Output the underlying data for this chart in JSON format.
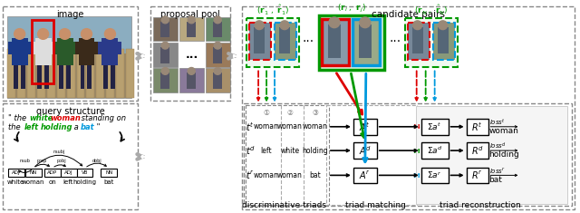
{
  "title_image": "image",
  "title_proposal": "proposal pool",
  "title_candidate": "candidate pairs",
  "title_query": "query structure",
  "title_disc": "discriminative triads",
  "title_triad_match": "triad matching",
  "title_triad_recon": "triad reconstruction",
  "bg_color": "#ffffff",
  "red": "#dd0000",
  "green": "#009900",
  "blue": "#0099dd",
  "cyan": "#00bbcc",
  "figsize": [
    6.4,
    2.35
  ],
  "dpi": 100
}
